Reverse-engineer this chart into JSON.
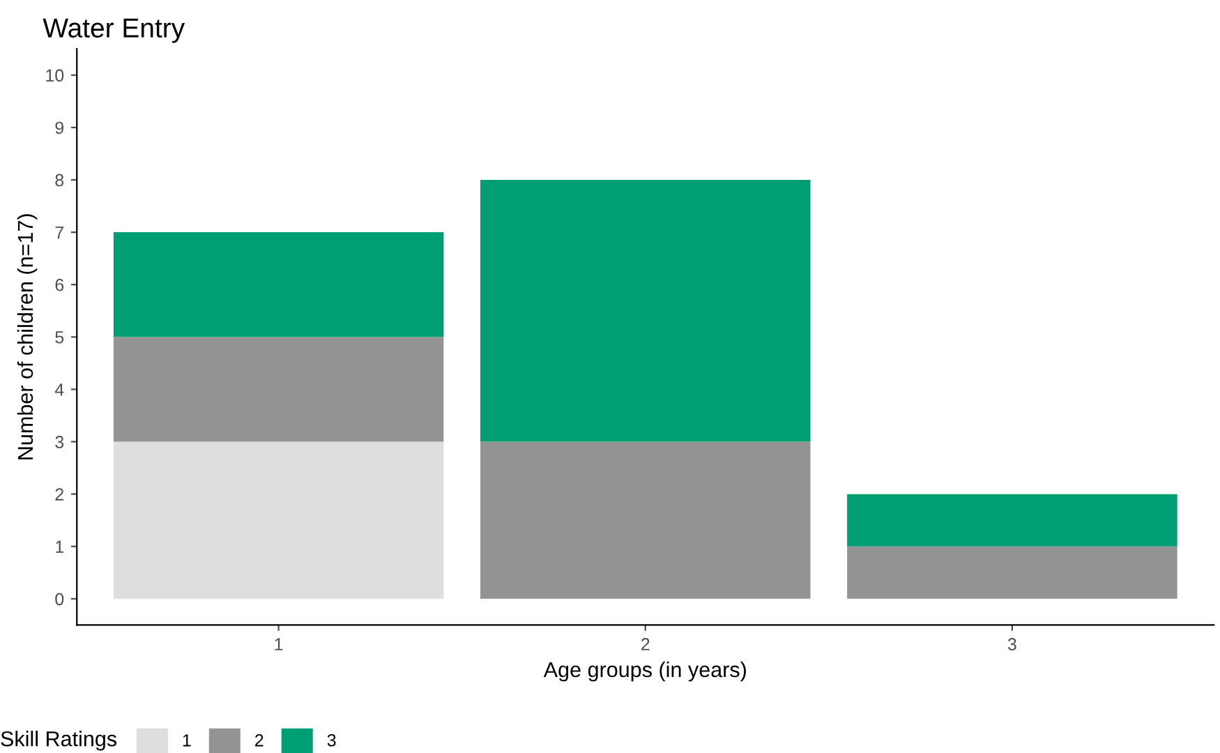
{
  "chart_data": {
    "type": "bar",
    "stacked": true,
    "title": "Water Entry",
    "xlabel": "Age groups (in years)",
    "ylabel": "Number of children (n=17)",
    "legend_title": "Skill Ratings",
    "legend": "bottom",
    "grid": false,
    "categories": [
      "1",
      "2",
      "3"
    ],
    "series": [
      {
        "name": "1",
        "color": "#dedede",
        "values": [
          3,
          0,
          0
        ]
      },
      {
        "name": "2",
        "color": "#939393",
        "values": [
          2,
          3,
          1
        ]
      },
      {
        "name": "3",
        "color": "#009e73",
        "values": [
          2,
          5,
          1
        ]
      }
    ],
    "ylim": [
      -0.5,
      10.5
    ],
    "yticks": [
      0,
      1,
      2,
      3,
      4,
      5,
      6,
      7,
      8,
      9,
      10
    ]
  }
}
